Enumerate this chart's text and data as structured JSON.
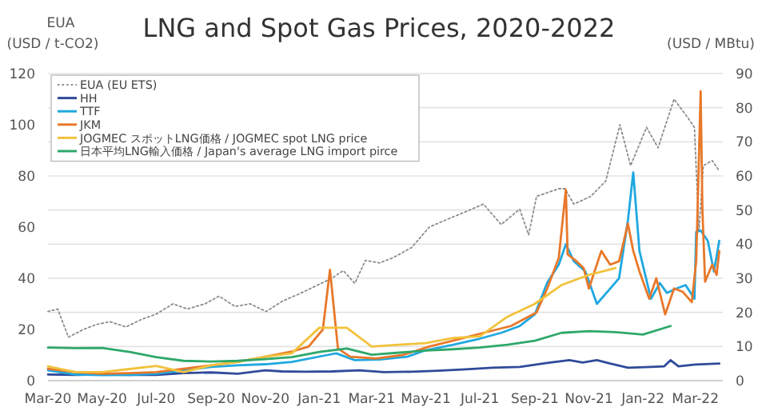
{
  "chart_data": {
    "type": "line",
    "title": "LNG and Spot Gas Prices, 2020-2022",
    "ylabel": "EUA\n(USD / t-CO2)",
    "y2label": "(USD / MBtu)",
    "xlim": [
      "2020-03-01",
      "2022-04-01"
    ],
    "xticks": [
      {
        "value": "2020-03-01",
        "label": "Mar-20"
      },
      {
        "value": "2020-05-01",
        "label": "May-20"
      },
      {
        "value": "2020-07-01",
        "label": "Jul-20"
      },
      {
        "value": "2020-09-01",
        "label": "Sep-20"
      },
      {
        "value": "2020-11-01",
        "label": "Nov-20"
      },
      {
        "value": "2021-01-01",
        "label": "Jan-21"
      },
      {
        "value": "2021-03-01",
        "label": "Mar-21"
      },
      {
        "value": "2021-05-01",
        "label": "May-21"
      },
      {
        "value": "2021-07-01",
        "label": "Jul-21"
      },
      {
        "value": "2021-09-01",
        "label": "Sep-21"
      },
      {
        "value": "2021-11-01",
        "label": "Nov-21"
      },
      {
        "value": "2022-01-01",
        "label": "Jan-22"
      },
      {
        "value": "2022-03-01",
        "label": "Mar-22"
      }
    ],
    "ylim": [
      0,
      120
    ],
    "yticks": [
      0,
      20,
      40,
      60,
      80,
      100,
      120
    ],
    "y2lim": [
      0,
      90
    ],
    "y2ticks": [
      0,
      10,
      20,
      30,
      40,
      50,
      60,
      70,
      80,
      90
    ],
    "grid": true,
    "legend": "top left",
    "series": [
      {
        "name": "EUA (EU ETS)",
        "color": "#8c8c8c",
        "axis": "y",
        "line_style": "dotted",
        "x": [
          "2020-03-01",
          "2020-03-12",
          "2020-03-24",
          "2020-04-10",
          "2020-04-25",
          "2020-05-10",
          "2020-05-28",
          "2020-06-15",
          "2020-07-01",
          "2020-07-20",
          "2020-08-05",
          "2020-08-25",
          "2020-09-10",
          "2020-09-28",
          "2020-10-15",
          "2020-11-02",
          "2020-11-20",
          "2020-12-10",
          "2020-12-28",
          "2021-01-15",
          "2021-01-28",
          "2021-02-10",
          "2021-02-22",
          "2021-03-10",
          "2021-03-25",
          "2021-04-15",
          "2021-05-05",
          "2021-05-25",
          "2021-06-15",
          "2021-07-05",
          "2021-07-25",
          "2021-08-15",
          "2021-08-25",
          "2021-09-03",
          "2021-09-28",
          "2021-10-05",
          "2021-10-15",
          "2021-11-03",
          "2021-11-20",
          "2021-12-06",
          "2021-12-18",
          "2022-01-05",
          "2022-01-18",
          "2022-02-05",
          "2022-02-20",
          "2022-02-28",
          "2022-03-05",
          "2022-03-10",
          "2022-03-20",
          "2022-03-28"
        ],
        "values": [
          27,
          28,
          17,
          20,
          22,
          23,
          21,
          24,
          26,
          30,
          28,
          30,
          33,
          29,
          30,
          27,
          31,
          34,
          37,
          40,
          43,
          38,
          47,
          46,
          48,
          52,
          60,
          63,
          66,
          69,
          61,
          67,
          57,
          72,
          75,
          75,
          69,
          72,
          78,
          100,
          84,
          99,
          91,
          110,
          103,
          99,
          58,
          84,
          86,
          82
        ]
      },
      {
        "name": "HH",
        "color": "#2f4b9a",
        "axis": "y2",
        "line_style": "solid",
        "x": [
          "2020-03-01",
          "2020-04-01",
          "2020-05-01",
          "2020-06-01",
          "2020-07-01",
          "2020-08-01",
          "2020-09-01",
          "2020-10-01",
          "2020-11-01",
          "2020-11-20",
          "2020-12-15",
          "2021-01-15",
          "2021-02-15",
          "2021-03-15",
          "2021-04-15",
          "2021-05-15",
          "2021-06-15",
          "2021-07-15",
          "2021-08-15",
          "2021-09-15",
          "2021-10-10",
          "2021-10-25",
          "2021-11-10",
          "2021-11-25",
          "2021-12-15",
          "2022-01-10",
          "2022-01-25",
          "2022-02-01",
          "2022-02-10",
          "2022-03-01",
          "2022-03-28"
        ],
        "values": [
          1.8,
          1.7,
          1.8,
          1.7,
          1.7,
          2.2,
          2.4,
          2.0,
          3.0,
          2.7,
          2.6,
          2.7,
          3.0,
          2.5,
          2.6,
          2.9,
          3.3,
          3.8,
          4.0,
          5.2,
          6.0,
          5.3,
          6.0,
          5.0,
          3.8,
          4.0,
          4.2,
          6.0,
          4.2,
          4.7,
          5.0
        ]
      },
      {
        "name": "TTF",
        "color": "#20a8e0",
        "axis": "y2",
        "line_style": "solid",
        "x": [
          "2020-03-01",
          "2020-04-01",
          "2020-05-01",
          "2020-06-01",
          "2020-07-01",
          "2020-08-01",
          "2020-09-01",
          "2020-10-01",
          "2020-11-01",
          "2020-12-01",
          "2021-01-10",
          "2021-01-20",
          "2021-02-10",
          "2021-03-10",
          "2021-04-10",
          "2021-05-01",
          "2021-06-01",
          "2021-07-01",
          "2021-07-25",
          "2021-08-15",
          "2021-09-01",
          "2021-09-15",
          "2021-09-28",
          "2021-10-06",
          "2021-10-15",
          "2021-10-28",
          "2021-11-10",
          "2021-11-25",
          "2021-12-05",
          "2021-12-15",
          "2021-12-21",
          "2021-12-28",
          "2022-01-10",
          "2022-01-20",
          "2022-01-28",
          "2022-02-08",
          "2022-02-18",
          "2022-02-28",
          "2022-03-02",
          "2022-03-07",
          "2022-03-15",
          "2022-03-22",
          "2022-03-28"
        ],
        "values": [
          3,
          1.8,
          1.6,
          1.7,
          2,
          3,
          4,
          4.5,
          4.8,
          5.5,
          7.5,
          8,
          6,
          6.2,
          7,
          8.9,
          10.5,
          12.3,
          14,
          16,
          19.4,
          28.7,
          34,
          40,
          35,
          32,
          22.5,
          27,
          30,
          47,
          61,
          38,
          24,
          28.6,
          25.7,
          27,
          28,
          24,
          43.6,
          44,
          41,
          32,
          41
        ]
      },
      {
        "name": "JKM",
        "color": "#e8782a",
        "axis": "y2",
        "line_style": "solid",
        "x": [
          "2020-03-01",
          "2020-04-01",
          "2020-05-01",
          "2020-06-01",
          "2020-07-01",
          "2020-08-01",
          "2020-09-01",
          "2020-10-01",
          "2020-11-01",
          "2020-12-01",
          "2020-12-20",
          "2021-01-05",
          "2021-01-13",
          "2021-01-22",
          "2021-02-05",
          "2021-03-05",
          "2021-04-05",
          "2021-05-05",
          "2021-06-05",
          "2021-07-05",
          "2021-08-05",
          "2021-09-03",
          "2021-09-15",
          "2021-09-28",
          "2021-10-06",
          "2021-10-08",
          "2021-10-18",
          "2021-10-26",
          "2021-11-01",
          "2021-11-15",
          "2021-11-25",
          "2021-12-05",
          "2021-12-15",
          "2021-12-21",
          "2021-12-28",
          "2022-01-08",
          "2022-01-16",
          "2022-01-26",
          "2022-02-05",
          "2022-02-15",
          "2022-02-25",
          "2022-03-02",
          "2022-03-07",
          "2022-03-09",
          "2022-03-12",
          "2022-03-20",
          "2022-03-25",
          "2022-03-28"
        ],
        "values": [
          3.5,
          2.5,
          2,
          2.2,
          2.5,
          3.5,
          4.5,
          5.5,
          7,
          8.5,
          10,
          15,
          32.5,
          9.4,
          7,
          6.5,
          7.5,
          10,
          12,
          14,
          16,
          20,
          27,
          36,
          56,
          37,
          35,
          33,
          27,
          38,
          34,
          35,
          46,
          38,
          32,
          24,
          30,
          19.4,
          27,
          26,
          23,
          35,
          84.8,
          50,
          29,
          34,
          31,
          38
        ]
      },
      {
        "name": "JOGMEC スポットLNG価格 / JOGMEC spot LNG price",
        "color": "#f2c23c",
        "axis": "y2",
        "line_style": "solid",
        "x": [
          "2020-03-01",
          "2020-04-01",
          "2020-05-01",
          "2020-06-01",
          "2020-07-01",
          "2020-08-01",
          "2020-09-01",
          "2020-10-01",
          "2020-11-01",
          "2020-12-01",
          "2021-01-01",
          "2021-02-01",
          "2021-03-01",
          "2021-04-01",
          "2021-05-01",
          "2021-06-01",
          "2021-07-01",
          "2021-08-01",
          "2021-09-01",
          "2021-10-01",
          "2021-11-01",
          "2021-12-01"
        ],
        "values": [
          4.2,
          2.5,
          2.5,
          3.4,
          4.3,
          2.5,
          4.5,
          5.5,
          7,
          8,
          15.5,
          15.5,
          10,
          10.5,
          11,
          12.5,
          13,
          18.7,
          22.5,
          28,
          31,
          33
        ]
      },
      {
        "name": "日本平均LNG輸入価格 / Japan's average LNG import pirce",
        "color": "#2ea86a",
        "axis": "y2",
        "line_style": "solid",
        "x": [
          "2020-03-01",
          "2020-04-01",
          "2020-05-01",
          "2020-06-01",
          "2020-07-01",
          "2020-08-01",
          "2020-09-01",
          "2020-10-01",
          "2020-11-01",
          "2020-12-01",
          "2021-01-01",
          "2021-02-01",
          "2021-03-01",
          "2021-04-01",
          "2021-05-01",
          "2021-06-01",
          "2021-07-01",
          "2021-08-01",
          "2021-09-01",
          "2021-10-01",
          "2021-11-01",
          "2021-12-01",
          "2022-01-01",
          "2022-02-01"
        ],
        "values": [
          9.7,
          9.5,
          9.6,
          8.4,
          6.9,
          5.8,
          5.6,
          5.8,
          6.3,
          6.9,
          8.4,
          9.4,
          7.6,
          8.2,
          8.8,
          9.2,
          9.7,
          10.5,
          11.7,
          14,
          14.5,
          14.2,
          13.5,
          16
        ]
      }
    ]
  }
}
